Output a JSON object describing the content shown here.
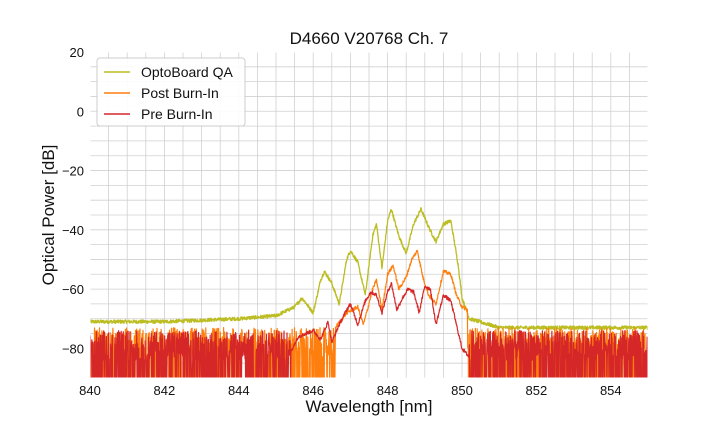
{
  "chart_data": {
    "type": "line",
    "title": "D4660 V20768 Ch. 7",
    "xlabel": "Wavelength [nm]",
    "ylabel": "Optical Power [dB]",
    "xlim": [
      840,
      855
    ],
    "ylim": [
      -90,
      20
    ],
    "xticks": [
      840,
      842,
      844,
      846,
      848,
      850,
      852,
      854
    ],
    "yticks": [
      20,
      0,
      -20,
      -40,
      -60,
      -80
    ],
    "xtick_labels": [
      "840",
      "842",
      "844",
      "846",
      "848",
      "850",
      "852",
      "854"
    ],
    "ytick_labels": [
      "20",
      "0",
      "−20",
      "−40",
      "−60",
      "−80"
    ],
    "minor_grid": true,
    "legend_position": "top-left",
    "series": [
      {
        "name": "OptoBoard QA",
        "color": "#bcbd22",
        "noise_floor": -72,
        "points": [
          [
            840,
            -71
          ],
          [
            842,
            -71
          ],
          [
            844,
            -70
          ],
          [
            845,
            -69
          ],
          [
            845.5,
            -66
          ],
          [
            845.7,
            -63
          ],
          [
            846,
            -68
          ],
          [
            846.2,
            -57
          ],
          [
            846.3,
            -54
          ],
          [
            846.5,
            -58
          ],
          [
            846.7,
            -65
          ],
          [
            846.9,
            -50
          ],
          [
            847.0,
            -47
          ],
          [
            847.2,
            -51
          ],
          [
            847.4,
            -62
          ],
          [
            847.6,
            -42
          ],
          [
            847.7,
            -38
          ],
          [
            847.85,
            -53
          ],
          [
            848.0,
            -37
          ],
          [
            848.1,
            -33
          ],
          [
            848.3,
            -42
          ],
          [
            848.5,
            -48
          ],
          [
            848.7,
            -38
          ],
          [
            848.9,
            -33
          ],
          [
            849.1,
            -39
          ],
          [
            849.3,
            -44
          ],
          [
            849.5,
            -38
          ],
          [
            849.7,
            -37
          ],
          [
            849.9,
            -52
          ],
          [
            850.0,
            -63
          ],
          [
            850.2,
            -70
          ],
          [
            851,
            -73
          ],
          [
            853,
            -73
          ],
          [
            855,
            -73
          ]
        ]
      },
      {
        "name": "Post Burn-In",
        "color": "#ff7f0e",
        "noise_floor": -80,
        "points": [
          [
            846.6,
            -73
          ],
          [
            846.9,
            -68
          ],
          [
            847.2,
            -66
          ],
          [
            847.35,
            -72
          ],
          [
            847.6,
            -60
          ],
          [
            847.7,
            -57
          ],
          [
            847.85,
            -67
          ],
          [
            848.0,
            -55
          ],
          [
            848.15,
            -52
          ],
          [
            848.3,
            -60
          ],
          [
            848.5,
            -56
          ],
          [
            848.65,
            -50
          ],
          [
            848.8,
            -47
          ],
          [
            848.95,
            -56
          ],
          [
            849.1,
            -62
          ],
          [
            849.3,
            -65
          ],
          [
            849.5,
            -54
          ],
          [
            849.7,
            -55
          ],
          [
            849.85,
            -62
          ],
          [
            850.0,
            -66
          ],
          [
            850.15,
            -67
          ]
        ]
      },
      {
        "name": "Pre Burn-In",
        "color": "#d62728",
        "noise_floor": -81,
        "points": [
          [
            845.4,
            -81
          ],
          [
            845.6,
            -76
          ],
          [
            846.0,
            -74
          ],
          [
            846.2,
            -77
          ],
          [
            846.4,
            -71
          ],
          [
            846.5,
            -78
          ],
          [
            846.7,
            -72
          ],
          [
            846.9,
            -67
          ],
          [
            847.0,
            -65
          ],
          [
            847.2,
            -72
          ],
          [
            847.4,
            -64
          ],
          [
            847.55,
            -61
          ],
          [
            847.7,
            -62
          ],
          [
            847.85,
            -68
          ],
          [
            848.0,
            -61
          ],
          [
            848.1,
            -58
          ],
          [
            848.25,
            -67
          ],
          [
            848.4,
            -63
          ],
          [
            848.55,
            -60
          ],
          [
            848.7,
            -61
          ],
          [
            848.85,
            -68
          ],
          [
            849.0,
            -59
          ],
          [
            849.15,
            -60
          ],
          [
            849.3,
            -72
          ],
          [
            849.5,
            -62
          ],
          [
            849.7,
            -64
          ],
          [
            849.85,
            -72
          ],
          [
            850.0,
            -80
          ],
          [
            850.2,
            -83
          ]
        ]
      }
    ]
  }
}
